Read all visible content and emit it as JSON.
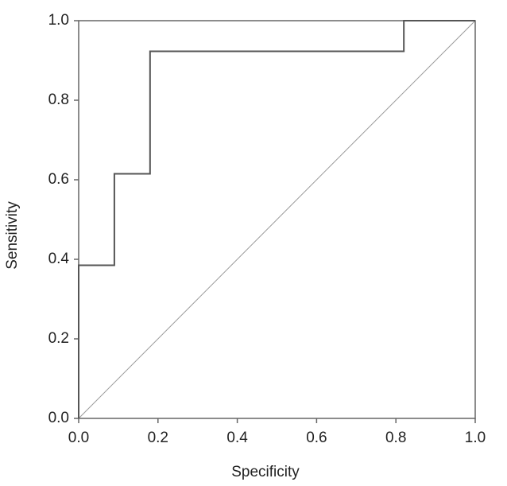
{
  "chart_data": {
    "type": "line",
    "xlabel": "Specificity",
    "ylabel": "Sensitivity",
    "x": [
      0,
      0,
      0.09,
      0.09,
      0.18,
      0.18,
      0.82,
      0.82,
      1
    ],
    "values": [
      0,
      0.385,
      0.385,
      0.615,
      0.615,
      0.923,
      0.923,
      1,
      1
    ],
    "color": "#555555",
    "xlim": [
      0,
      1
    ],
    "ylim": [
      0,
      1
    ],
    "xticks": [
      {
        "value": 0,
        "label": "0.0"
      },
      0.2,
      0.4,
      0.6,
      0.8,
      {
        "value": 1,
        "label": "1.0"
      }
    ],
    "yticks": [
      {
        "value": 0,
        "label": "0.0"
      },
      0.2,
      0.4,
      0.6,
      0.8,
      {
        "value": 1,
        "label": "1.0"
      }
    ]
  }
}
